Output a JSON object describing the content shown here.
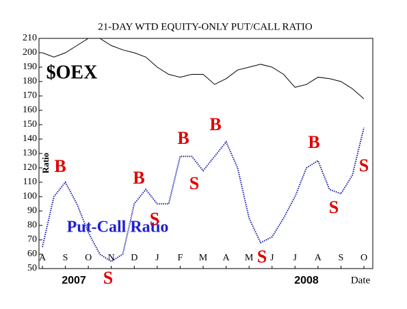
{
  "chart_data": {
    "type": "line",
    "title": "21-DAY WTD EQUITY-ONLY PUT/CALL RATIO",
    "y_label": "Ratio",
    "x_label": "Date",
    "years": [
      "2007",
      "2008"
    ],
    "categories": [
      "A",
      null,
      "S",
      null,
      "O",
      null,
      "N",
      null,
      "D",
      null,
      "J",
      null,
      "F",
      null,
      "M",
      null,
      "A",
      null,
      "M",
      null,
      "J",
      null,
      "J",
      null,
      "A",
      null,
      "S",
      null,
      "O"
    ],
    "series": [
      {
        "name": "$OEX",
        "color": "#000000",
        "values": [
          200,
          197,
          200,
          205,
          210,
          210,
          205,
          202,
          200,
          197,
          190,
          185,
          183,
          185,
          185,
          178,
          182,
          188,
          190,
          192,
          190,
          185,
          176,
          178,
          183,
          182,
          180,
          175,
          168
        ]
      },
      {
        "name": "Put-Call Ratio",
        "color": "#1a1aa6",
        "values": [
          65,
          100,
          110,
          95,
          75,
          60,
          55,
          60,
          95,
          105,
          95,
          95,
          128,
          128,
          118,
          128,
          138,
          120,
          85,
          68,
          72,
          85,
          100,
          120,
          125,
          105,
          102,
          115,
          148
        ]
      }
    ],
    "annotations": [
      "B",
      "B",
      "S",
      "B",
      "S",
      "B",
      "B",
      "S",
      "S",
      "S",
      "S"
    ],
    "ylim": [
      50,
      210
    ],
    "yticks": [
      50,
      60,
      70,
      80,
      90,
      100,
      110,
      120,
      130,
      140,
      150,
      160,
      170,
      180,
      190,
      200,
      210
    ]
  }
}
